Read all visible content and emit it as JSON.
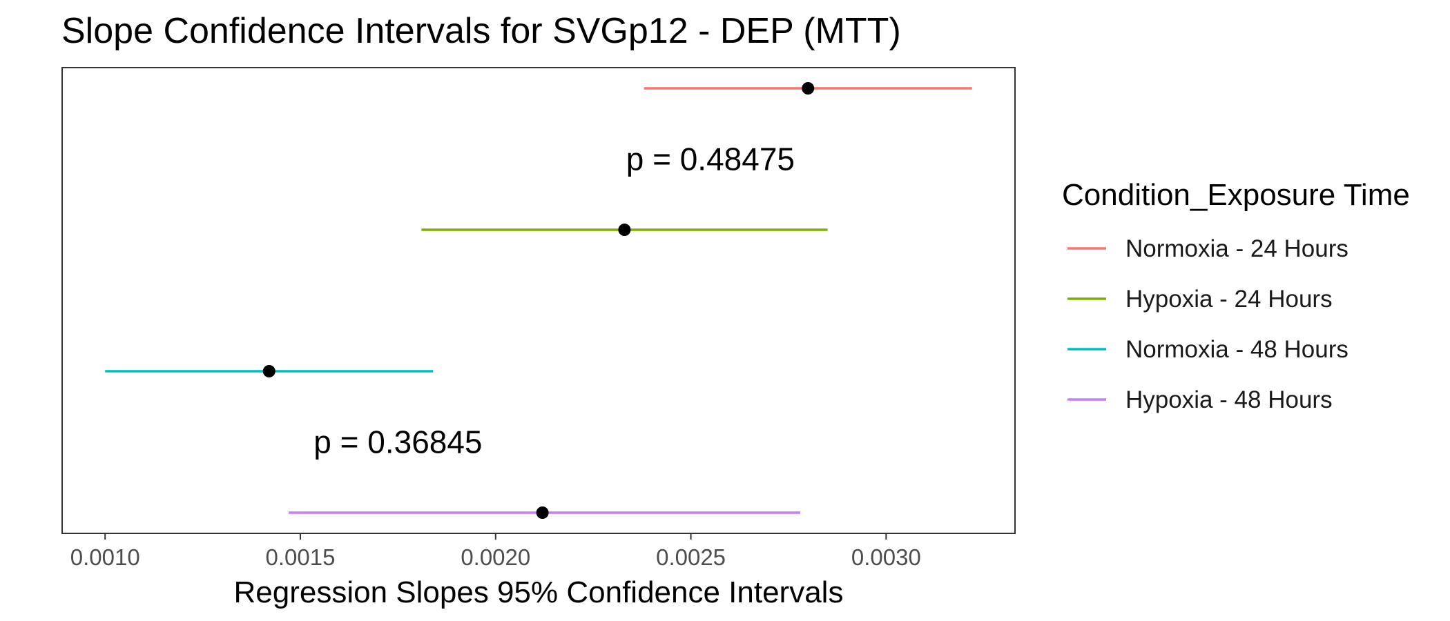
{
  "chart_data": {
    "type": "errorbar",
    "title": "Slope Confidence Intervals for SVGp12 - DEP (MTT)",
    "xlabel": "Regression Slopes 95% Confidence Intervals",
    "ylabel": "",
    "xlim": [
      0.00089,
      0.00333
    ],
    "x_ticks": [
      "0.0010",
      "0.0015",
      "0.0020",
      "0.0025",
      "0.0030"
    ],
    "x_tick_values": [
      0.001,
      0.0015,
      0.002,
      0.0025,
      0.003
    ],
    "grid": false,
    "legend": {
      "title": "Condition_Exposure Time",
      "placement": "right"
    },
    "series": [
      {
        "name": "Normoxia - 24 Hours",
        "estimate": 0.0028,
        "lower": 0.00238,
        "upper": 0.00322,
        "color": "#F8766D"
      },
      {
        "name": "Hypoxia - 24 Hours",
        "estimate": 0.00233,
        "lower": 0.00181,
        "upper": 0.00285,
        "color": "#7CAE00"
      },
      {
        "name": "Normoxia - 48 Hours",
        "estimate": 0.00142,
        "lower": 0.001,
        "upper": 0.00184,
        "color": "#00BFC4"
      },
      {
        "name": "Hypoxia - 48 Hours",
        "estimate": 0.00212,
        "lower": 0.00147,
        "upper": 0.00278,
        "color": "#C77CFF"
      }
    ],
    "annotations": [
      {
        "text": "p = 0.48475",
        "x": 0.00255,
        "between": [
          "Normoxia - 24 Hours",
          "Hypoxia - 24 Hours"
        ]
      },
      {
        "text": "p = 0.36845",
        "x": 0.00175,
        "between": [
          "Normoxia - 48 Hours",
          "Hypoxia - 48 Hours"
        ]
      }
    ],
    "point_color": "#000000"
  }
}
